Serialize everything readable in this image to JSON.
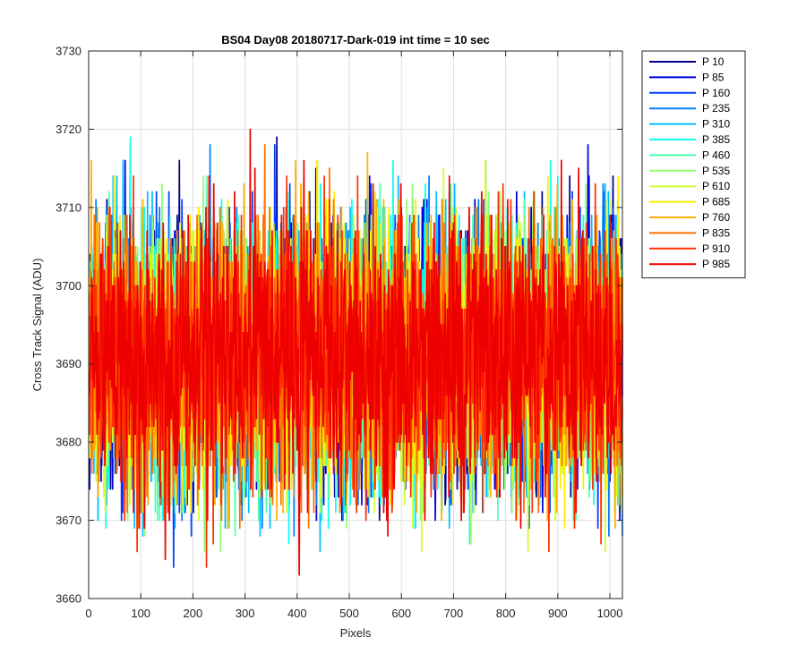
{
  "chart_data": {
    "type": "line",
    "title": "BS04 Day08 20180717-Dark-019 int time = 10 sec",
    "xlabel": "Pixels",
    "ylabel": "Cross Track Signal (ADU)",
    "xlim": [
      0,
      1024
    ],
    "ylim": [
      3660,
      3730
    ],
    "x_ticks": [
      0,
      100,
      200,
      300,
      400,
      500,
      600,
      700,
      800,
      900,
      1000
    ],
    "y_ticks": [
      3660,
      3670,
      3680,
      3690,
      3700,
      3710,
      3720,
      3730
    ],
    "grid": true,
    "legend_position": "outside-top-right",
    "series": [
      {
        "name": "P 10",
        "color": "#00008F",
        "mean": 3691,
        "std": 8.5,
        "min": 3670,
        "max": 3722
      },
      {
        "name": "P 85",
        "color": "#0000E0",
        "mean": 3691,
        "std": 8.5,
        "min": 3670,
        "max": 3720
      },
      {
        "name": "P 160",
        "color": "#0040FF",
        "mean": 3691,
        "std": 8.5,
        "min": 3664,
        "max": 3719
      },
      {
        "name": "P 235",
        "color": "#0080FF",
        "mean": 3691,
        "std": 8.5,
        "min": 3665,
        "max": 3720
      },
      {
        "name": "P 310",
        "color": "#00BFFF",
        "mean": 3691,
        "std": 8.5,
        "min": 3665,
        "max": 3719
      },
      {
        "name": "P 385",
        "color": "#10FFEF",
        "mean": 3691,
        "std": 8.5,
        "min": 3666,
        "max": 3722
      },
      {
        "name": "P 460",
        "color": "#50FFAF",
        "mean": 3691,
        "std": 8.5,
        "min": 3668,
        "max": 3719
      },
      {
        "name": "P 535",
        "color": "#8FFF70",
        "mean": 3691,
        "std": 8.5,
        "min": 3666,
        "max": 3717
      },
      {
        "name": "P 610",
        "color": "#CFFF30",
        "mean": 3691,
        "std": 8.5,
        "min": 3664,
        "max": 3722
      },
      {
        "name": "P 685",
        "color": "#FFEF00",
        "mean": 3691,
        "std": 8.5,
        "min": 3668,
        "max": 3718
      },
      {
        "name": "P 760",
        "color": "#FFAF00",
        "mean": 3691,
        "std": 8.5,
        "min": 3668,
        "max": 3720
      },
      {
        "name": "P 835",
        "color": "#FF7000",
        "mean": 3691,
        "std": 8.5,
        "min": 3668,
        "max": 3724
      },
      {
        "name": "P 910",
        "color": "#FF3000",
        "mean": 3691,
        "std": 8.5,
        "min": 3661,
        "max": 3719
      },
      {
        "name": "P 985",
        "color": "#EF0000",
        "mean": 3691,
        "std": 8.5,
        "min": 3663,
        "max": 3720
      }
    ]
  }
}
